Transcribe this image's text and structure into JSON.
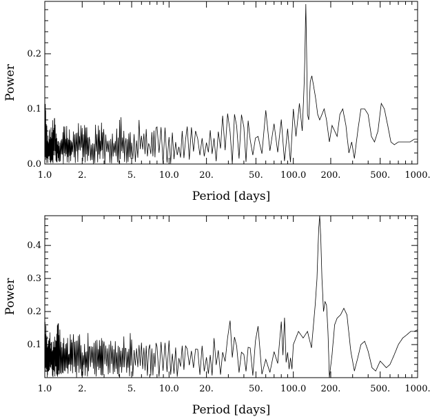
{
  "chart_data": [
    {
      "type": "line",
      "xscale": "log",
      "xlim": [
        1.0,
        1000.0
      ],
      "ylim": [
        0.0,
        0.295
      ],
      "xlabel": "Period [days]",
      "ylabel": "Power",
      "grid": false,
      "xtick_values": [
        1,
        2,
        5,
        10,
        20,
        50,
        100,
        200,
        500,
        1000
      ],
      "xtick_labels": [
        "1.0",
        "2.",
        "5.",
        "10.0",
        "20.",
        "50.",
        "100.0",
        "200.",
        "500.",
        "1000."
      ],
      "ytick_values": [
        0.0,
        0.1,
        0.2
      ],
      "ytick_labels": [
        "0.0",
        "0.1",
        "0.2"
      ],
      "series": [
        {
          "x": [
            1.0,
            1.05,
            1.1,
            1.2,
            1.3,
            1.5,
            1.7,
            2.0,
            2.3,
            2.7,
            3.0,
            3.5,
            4.0,
            4.5,
            5.0,
            6.0,
            7.0,
            8.0,
            10.0,
            12.0,
            14.0,
            17.0,
            20.0,
            23.0,
            27.0,
            31.0,
            35.0,
            40.0,
            45.0,
            52.0,
            60.0,
            70.0,
            80.0,
            90.0,
            100.0,
            105.0,
            112.0,
            118.0,
            122.0,
            124.0,
            126.0,
            128.0,
            130.0,
            133.0,
            137.0,
            141.0,
            146.0,
            151.0,
            157.0,
            163.0,
            170.0,
            177.0,
            185.0,
            195.0,
            205.0,
            215.0,
            225.0,
            237.0,
            250.0,
            265.0,
            280.0,
            295.0,
            310.0,
            330.0,
            350.0,
            375.0,
            400.0,
            425.0,
            450.0,
            480.0,
            510.0,
            540.0,
            575.0,
            610.0,
            650.0,
            700.0,
            750.0,
            800.0,
            870.0,
            940.0,
            1000.0
          ],
          "y": [
            0.14,
            0.05,
            0.07,
            0.09,
            0.04,
            0.08,
            0.06,
            0.09,
            0.05,
            0.08,
            0.07,
            0.06,
            0.09,
            0.05,
            0.07,
            0.08,
            0.05,
            0.07,
            0.06,
            0.05,
            0.07,
            0.08,
            0.06,
            0.07,
            0.09,
            0.1,
            0.08,
            0.11,
            0.07,
            0.09,
            0.1,
            0.11,
            0.09,
            0.08,
            0.1,
            0.05,
            0.11,
            0.06,
            0.14,
            0.2,
            0.29,
            0.2,
            0.09,
            0.08,
            0.15,
            0.16,
            0.14,
            0.12,
            0.09,
            0.08,
            0.09,
            0.1,
            0.08,
            0.04,
            0.07,
            0.06,
            0.05,
            0.09,
            0.1,
            0.07,
            0.02,
            0.04,
            0.01,
            0.06,
            0.1,
            0.1,
            0.09,
            0.05,
            0.04,
            0.06,
            0.11,
            0.1,
            0.07,
            0.04,
            0.035,
            0.04,
            0.04,
            0.04,
            0.04,
            0.045,
            0.045
          ]
        }
      ]
    },
    {
      "type": "line",
      "xscale": "log",
      "xlim": [
        1.0,
        1000.0
      ],
      "ylim": [
        0.0,
        0.49
      ],
      "xlabel": "Period [days]",
      "ylabel": "Power",
      "grid": false,
      "xtick_values": [
        1,
        2,
        5,
        10,
        20,
        50,
        100,
        200,
        500,
        1000
      ],
      "xtick_labels": [
        "1.0",
        "2.",
        "5.",
        "10.0",
        "20.",
        "50.",
        "100.0",
        "200.",
        "500.",
        "1000."
      ],
      "ytick_values": [
        0.1,
        0.2,
        0.3,
        0.4
      ],
      "ytick_labels": [
        "0.1",
        "0.2",
        "0.3",
        "0.4"
      ],
      "series": [
        {
          "x": [
            1.0,
            1.05,
            1.1,
            1.2,
            1.3,
            1.5,
            1.7,
            2.0,
            2.3,
            2.7,
            3.0,
            3.5,
            4.0,
            4.5,
            5.0,
            6.0,
            7.0,
            8.0,
            10.0,
            12.0,
            14.0,
            17.0,
            20.0,
            23.0,
            27.0,
            31.0,
            35.0,
            40.0,
            45.0,
            52.0,
            60.0,
            70.0,
            80.0,
            85.0,
            90.0,
            95.0,
            100.0,
            110.0,
            120.0,
            130.0,
            140.0,
            150.0,
            155.0,
            160.0,
            163.0,
            166.0,
            170.0,
            175.0,
            180.0,
            185.0,
            190.0,
            195.0,
            205.0,
            215.0,
            225.0,
            240.0,
            255.0,
            270.0,
            290.0,
            310.0,
            330.0,
            350.0,
            375.0,
            400.0,
            430.0,
            460.0,
            500.0,
            530.0,
            560.0,
            600.0,
            650.0,
            700.0,
            760.0,
            820.0,
            880.0,
            940.0,
            1000.0
          ],
          "y": [
            0.2,
            0.1,
            0.15,
            0.12,
            0.18,
            0.11,
            0.16,
            0.12,
            0.14,
            0.11,
            0.15,
            0.12,
            0.1,
            0.13,
            0.14,
            0.11,
            0.12,
            0.1,
            0.11,
            0.09,
            0.12,
            0.1,
            0.11,
            0.12,
            0.1,
            0.22,
            0.11,
            0.12,
            0.1,
            0.15,
            0.08,
            0.09,
            0.24,
            0.2,
            0.12,
            0.08,
            0.1,
            0.14,
            0.12,
            0.14,
            0.09,
            0.22,
            0.3,
            0.45,
            0.49,
            0.43,
            0.3,
            0.2,
            0.23,
            0.22,
            0.14,
            0.0,
            0.07,
            0.16,
            0.18,
            0.19,
            0.21,
            0.19,
            0.08,
            0.02,
            0.06,
            0.1,
            0.11,
            0.08,
            0.03,
            0.02,
            0.05,
            0.04,
            0.03,
            0.04,
            0.07,
            0.1,
            0.12,
            0.13,
            0.14,
            0.14,
            0.145
          ]
        }
      ]
    }
  ]
}
